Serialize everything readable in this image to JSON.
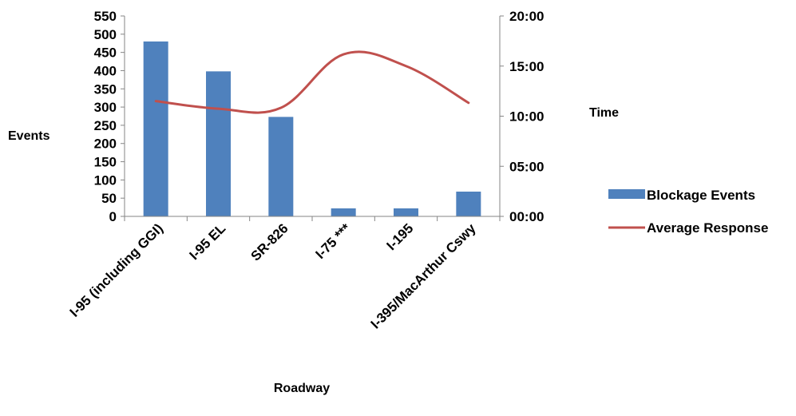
{
  "chart_data": {
    "type": "bar",
    "categories": [
      "I-95 (including GGI)",
      "I-95 EL",
      "SR-826",
      "I-75 ***",
      "I-195",
      "I-395/MacArthur Cswy"
    ],
    "series": [
      {
        "name": "Blockage Events",
        "type": "bar",
        "axis": "left",
        "color": "#4F81BD",
        "values": [
          480,
          398,
          273,
          22,
          22,
          68
        ]
      },
      {
        "name": "Average Response",
        "type": "line",
        "axis": "right",
        "color": "#C0504D",
        "values": [
          "11:30",
          "10:45",
          "10:50",
          "16:10",
          "15:00",
          "11:20"
        ]
      }
    ],
    "xlabel": "Roadway",
    "ylabel": "Events",
    "y2label": "Time",
    "ylim": [
      0,
      550
    ],
    "yticks": [
      "0",
      "50",
      "100",
      "150",
      "200",
      "250",
      "300",
      "350",
      "400",
      "450",
      "500",
      "550"
    ],
    "y2lim": [
      "00:00",
      "20:00"
    ],
    "y2ticks": [
      "00:00",
      "05:00",
      "10:00",
      "15:00",
      "20:00"
    ],
    "grid": false,
    "legend": "right"
  }
}
